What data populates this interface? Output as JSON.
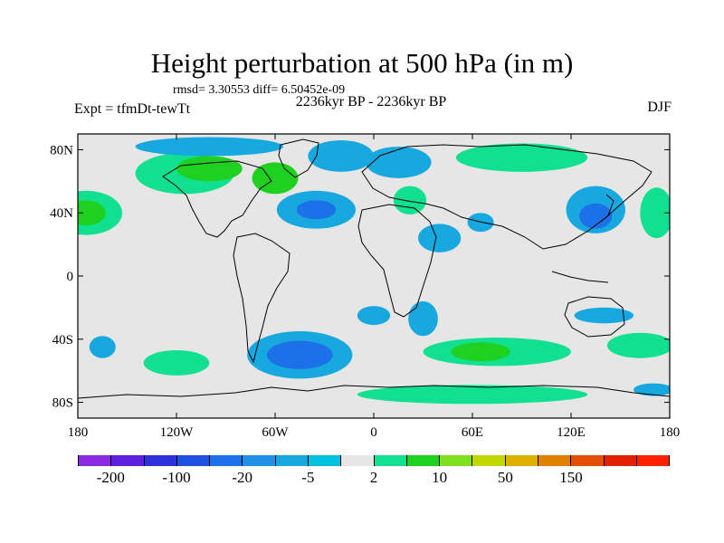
{
  "title": "Height perturbation at 500 hPa (in m)",
  "subtitle": "rmsd= 3.30553 diff= 6.50452e-09",
  "left_label": "Expt = tfmDt-tewTt",
  "center_label": "2236kyr BP - 2236kyr BP",
  "right_label": "DJF",
  "map": {
    "lon_range": [
      -180,
      180
    ],
    "lat_range": [
      -90,
      90
    ],
    "x_ticks": [
      {
        "lon": -180,
        "label": "180"
      },
      {
        "lon": -120,
        "label": "120W"
      },
      {
        "lon": -60,
        "label": "60W"
      },
      {
        "lon": 0,
        "label": "0"
      },
      {
        "lon": 60,
        "label": "60E"
      },
      {
        "lon": 120,
        "label": "120E"
      },
      {
        "lon": 180,
        "label": "180"
      }
    ],
    "y_ticks": [
      {
        "lat": 80,
        "label": "80N"
      },
      {
        "lat": 40,
        "label": "40N"
      },
      {
        "lat": 0,
        "label": "0"
      },
      {
        "lat": -40,
        "label": "40S"
      },
      {
        "lat": -80,
        "label": "80S"
      }
    ],
    "background_color": "#e6e6e6",
    "anomaly_regions": [
      {
        "name": "north-pacific-positive",
        "lon": -175,
        "lat": 40,
        "rx": 22,
        "ry": 14,
        "level": 1
      },
      {
        "name": "north-pacific-positive-core",
        "lon": -175,
        "lat": 40,
        "rx": 12,
        "ry": 8,
        "level": 2
      },
      {
        "name": "north-america-positive",
        "lon": -115,
        "lat": 65,
        "rx": 30,
        "ry": 13,
        "level": 1
      },
      {
        "name": "canada-positive-core",
        "lon": -100,
        "lat": 68,
        "rx": 20,
        "ry": 8,
        "level": 2
      },
      {
        "name": "baffin-positive",
        "lon": -60,
        "lat": 62,
        "rx": 14,
        "ry": 10,
        "level": 2
      },
      {
        "name": "arctic-negative",
        "lon": -100,
        "lat": 82,
        "rx": 45,
        "ry": 6,
        "level": -1
      },
      {
        "name": "greenland-negative",
        "lon": -20,
        "lat": 76,
        "rx": 20,
        "ry": 10,
        "level": -1
      },
      {
        "name": "north-atlantic-negative",
        "lon": -35,
        "lat": 42,
        "rx": 24,
        "ry": 12,
        "level": -1
      },
      {
        "name": "north-atlantic-negative-core",
        "lon": -35,
        "lat": 42,
        "rx": 12,
        "ry": 6,
        "level": -2
      },
      {
        "name": "scandinavia-negative",
        "lon": 15,
        "lat": 72,
        "rx": 20,
        "ry": 10,
        "level": -1
      },
      {
        "name": "europe-positive",
        "lon": 22,
        "lat": 48,
        "rx": 10,
        "ry": 9,
        "level": 1
      },
      {
        "name": "siberia-positive",
        "lon": 90,
        "lat": 75,
        "rx": 40,
        "ry": 9,
        "level": 1
      },
      {
        "name": "middle-east-negative",
        "lon": 40,
        "lat": 24,
        "rx": 13,
        "ry": 9,
        "level": -1
      },
      {
        "name": "central-asia-negative",
        "lon": 65,
        "lat": 34,
        "rx": 8,
        "ry": 6,
        "level": -1
      },
      {
        "name": "east-asia-negative",
        "lon": 135,
        "lat": 42,
        "rx": 18,
        "ry": 15,
        "level": -1
      },
      {
        "name": "east-asia-negative-core",
        "lon": 135,
        "lat": 38,
        "rx": 10,
        "ry": 8,
        "level": -2
      },
      {
        "name": "west-pacific-positive",
        "lon": 172,
        "lat": 40,
        "rx": 10,
        "ry": 16,
        "level": 1
      },
      {
        "name": "south-atlantic-negative",
        "lon": 0,
        "lat": -25,
        "rx": 10,
        "ry": 6,
        "level": -1
      },
      {
        "name": "southern-africa-negative",
        "lon": 30,
        "lat": -27,
        "rx": 9,
        "ry": 11,
        "level": -1
      },
      {
        "name": "australia-negative",
        "lon": 140,
        "lat": -25,
        "rx": 18,
        "ry": 5,
        "level": -1
      },
      {
        "name": "south-pacific-negative",
        "lon": -165,
        "lat": -45,
        "rx": 8,
        "ry": 7,
        "level": -1
      },
      {
        "name": "south-pacific-positive",
        "lon": -120,
        "lat": -55,
        "rx": 20,
        "ry": 8,
        "level": 1
      },
      {
        "name": "southern-ocean-negative",
        "lon": -45,
        "lat": -50,
        "rx": 32,
        "ry": 15,
        "level": -1
      },
      {
        "name": "southern-ocean-negative-core",
        "lon": -45,
        "lat": -50,
        "rx": 20,
        "ry": 9,
        "level": -2
      },
      {
        "name": "south-indian-positive",
        "lon": 75,
        "lat": -48,
        "rx": 45,
        "ry": 9,
        "level": 1
      },
      {
        "name": "south-indian-positive-core",
        "lon": 65,
        "lat": -48,
        "rx": 18,
        "ry": 6,
        "level": 2
      },
      {
        "name": "antarctic-positive",
        "lon": 60,
        "lat": -75,
        "rx": 70,
        "ry": 6,
        "level": 1
      },
      {
        "name": "tasman-positive",
        "lon": 162,
        "lat": -44,
        "rx": 20,
        "ry": 8,
        "level": 1
      },
      {
        "name": "antarctic-pacific-negative",
        "lon": 170,
        "lat": -72,
        "rx": 12,
        "ry": 4,
        "level": -1
      }
    ]
  },
  "colorbar": {
    "colors": [
      "#8a2be2",
      "#6020e0",
      "#3030d8",
      "#2050e0",
      "#1c70e8",
      "#1e90e8",
      "#18a8e0",
      "#00c0e0",
      "#e6e6e6",
      "#10e090",
      "#20d020",
      "#80e020",
      "#c0d800",
      "#e0b000",
      "#e08000",
      "#e05000",
      "#e02000",
      "#ff2000"
    ],
    "labels": [
      {
        "after_index": 0,
        "text": "-200"
      },
      {
        "after_index": 2,
        "text": "-100"
      },
      {
        "after_index": 4,
        "text": "-20"
      },
      {
        "after_index": 6,
        "text": "-5"
      },
      {
        "after_index": 8,
        "text": "2"
      },
      {
        "after_index": 10,
        "text": "10"
      },
      {
        "after_index": 12,
        "text": "50"
      },
      {
        "after_index": 14,
        "text": "150"
      }
    ]
  },
  "level_colors": {
    "-2": "#1c70e8",
    "-1": "#18a8e0",
    "1": "#10e090",
    "2": "#20d020"
  }
}
